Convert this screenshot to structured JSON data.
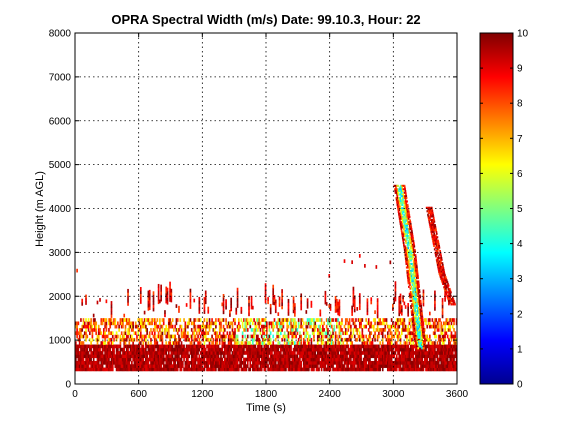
{
  "chart_data": {
    "type": "heatmap",
    "title": "OPRA Spectral Width (m/s)  Date: 99.10.3, Hour: 22",
    "xlabel": "Time (s)",
    "ylabel": "Height (m AGL)",
    "xlim": [
      0,
      3600
    ],
    "ylim": [
      0,
      8000
    ],
    "xticks": [
      0,
      600,
      1200,
      1800,
      2400,
      3000,
      3600
    ],
    "yticks": [
      0,
      1000,
      2000,
      3000,
      4000,
      5000,
      6000,
      7000,
      8000
    ],
    "grid": true,
    "colorbar": {
      "range": [
        0,
        10
      ],
      "ticks": [
        0,
        1,
        2,
        3,
        4,
        5,
        6,
        7,
        8,
        9,
        10
      ],
      "colormap": "jet"
    },
    "layers": [
      {
        "description": "persistent low-level band",
        "z_range_m": [
          300,
          900
        ],
        "value_range": [
          9,
          10
        ],
        "x_range_s": [
          0,
          3600
        ]
      },
      {
        "description": "broken band",
        "z_range_m": [
          900,
          1500
        ],
        "value_range": [
          6,
          10
        ],
        "x_range_s": [
          0,
          3600
        ]
      },
      {
        "description": "scattered echoes",
        "z_range_m": [
          1500,
          3000
        ],
        "value_range": [
          8,
          10
        ],
        "x_range_s": [
          0,
          3600
        ]
      },
      {
        "description": "descending low-width feature",
        "value_range": [
          2,
          7
        ],
        "path": [
          [
            3050,
            4500
          ],
          [
            3150,
            3000
          ],
          [
            3250,
            800
          ]
        ]
      },
      {
        "description": "secondary descending edge",
        "value_range": [
          8,
          10
        ],
        "path": [
          [
            3330,
            4000
          ],
          [
            3450,
            2500
          ],
          [
            3550,
            1800
          ]
        ]
      }
    ]
  }
}
